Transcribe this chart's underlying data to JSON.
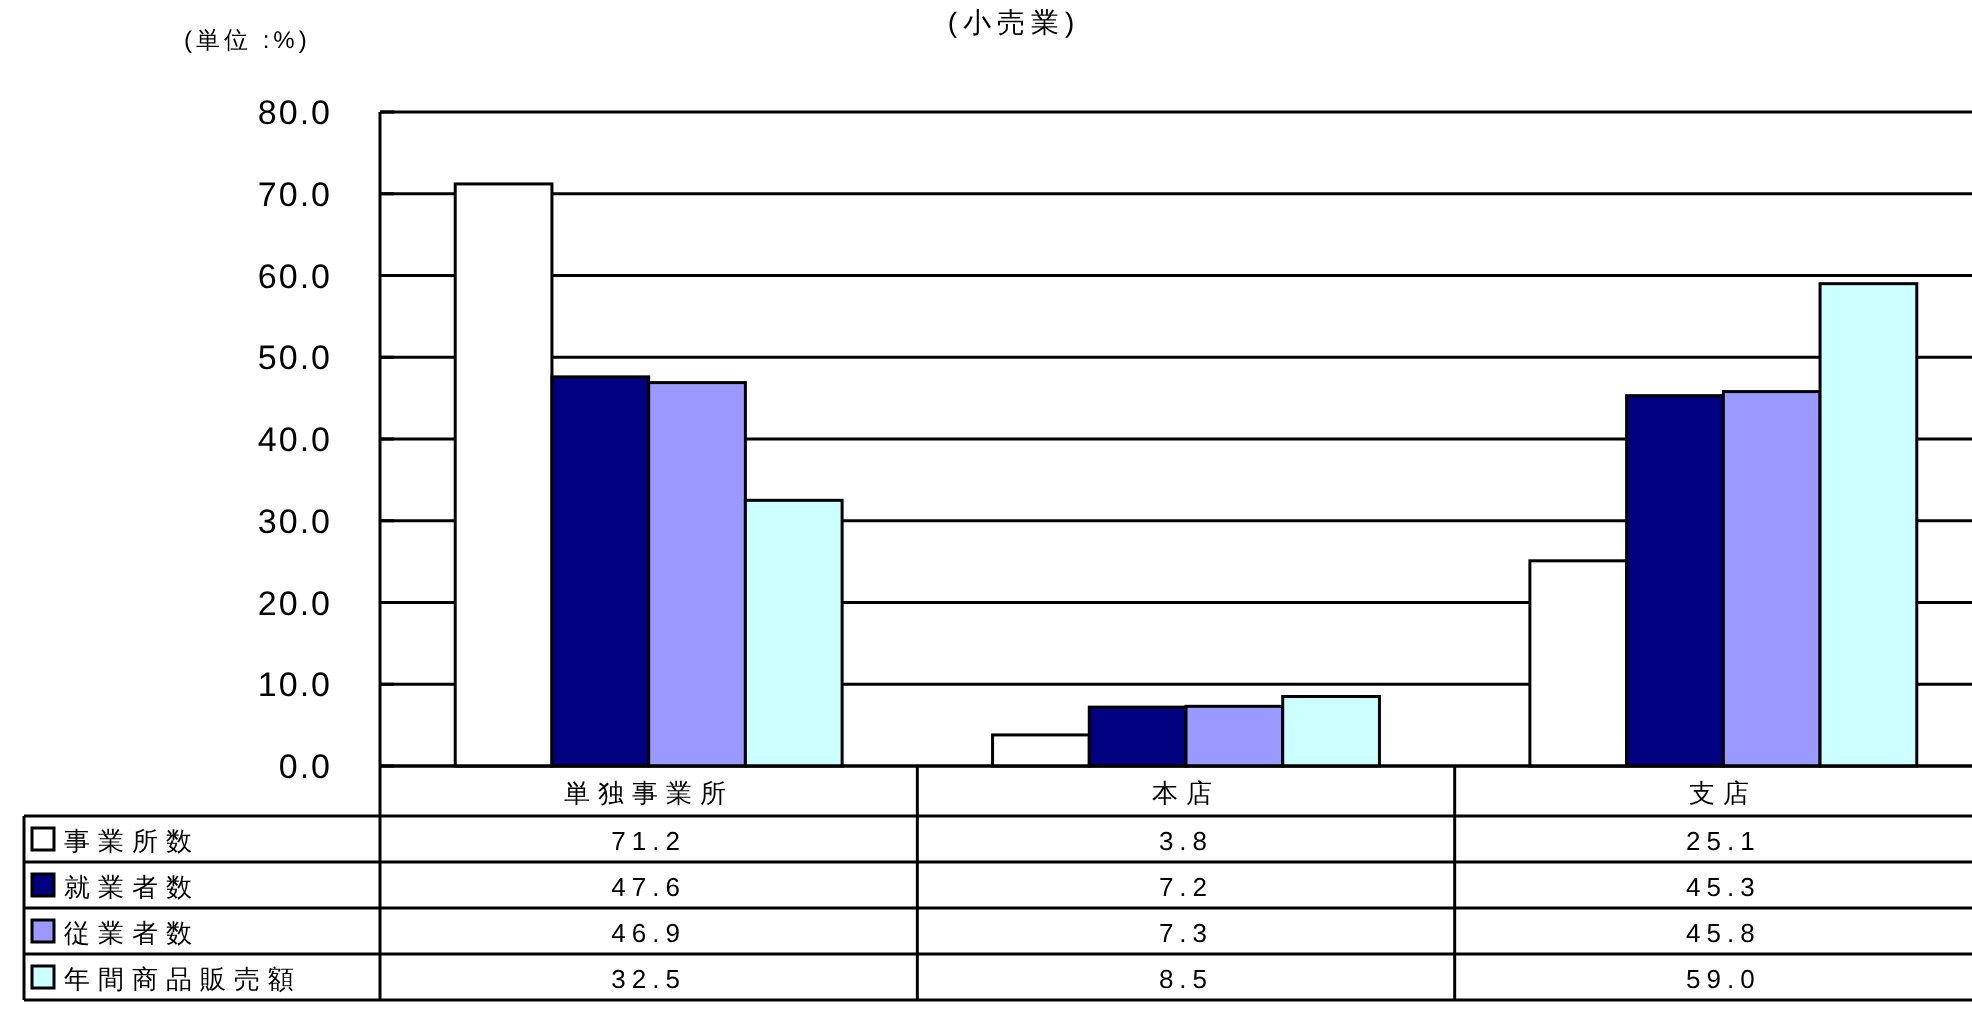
{
  "chart_data": {
    "type": "bar",
    "title": "(小売業)",
    "ylabel": "(単位 :%)",
    "categories": [
      "単独事業所",
      "本店",
      "支店"
    ],
    "series": [
      {
        "name": "事業所数",
        "color": "#ffffff",
        "values": [
          71.2,
          3.8,
          25.1
        ],
        "value_labels": [
          "71.2",
          "3.8",
          "25.1"
        ]
      },
      {
        "name": "就業者数",
        "color": "#000080",
        "values": [
          47.6,
          7.2,
          45.3
        ],
        "value_labels": [
          "47.6",
          "7.2",
          "45.3"
        ]
      },
      {
        "name": "従業者数",
        "color": "#9999ff",
        "values": [
          46.9,
          7.3,
          45.8
        ],
        "value_labels": [
          "46.9",
          "7.3",
          "45.8"
        ]
      },
      {
        "name": "年間商品販売額",
        "color": "#ccffff",
        "values": [
          32.5,
          8.5,
          59.0
        ],
        "value_labels": [
          "32.5",
          "8.5",
          "59.0"
        ]
      }
    ],
    "ylim": [
      0,
      80
    ],
    "yticks": [
      {
        "value": 0,
        "label": "0.0"
      },
      {
        "value": 10,
        "label": "10.0"
      },
      {
        "value": 20,
        "label": "20.0"
      },
      {
        "value": 30,
        "label": "30.0"
      },
      {
        "value": 40,
        "label": "40.0"
      },
      {
        "value": 50,
        "label": "50.0"
      },
      {
        "value": 60,
        "label": "60.0"
      },
      {
        "value": 70,
        "label": "70.0"
      },
      {
        "value": 80,
        "label": "80.0"
      }
    ],
    "grid": "y",
    "legend": "bottom"
  }
}
